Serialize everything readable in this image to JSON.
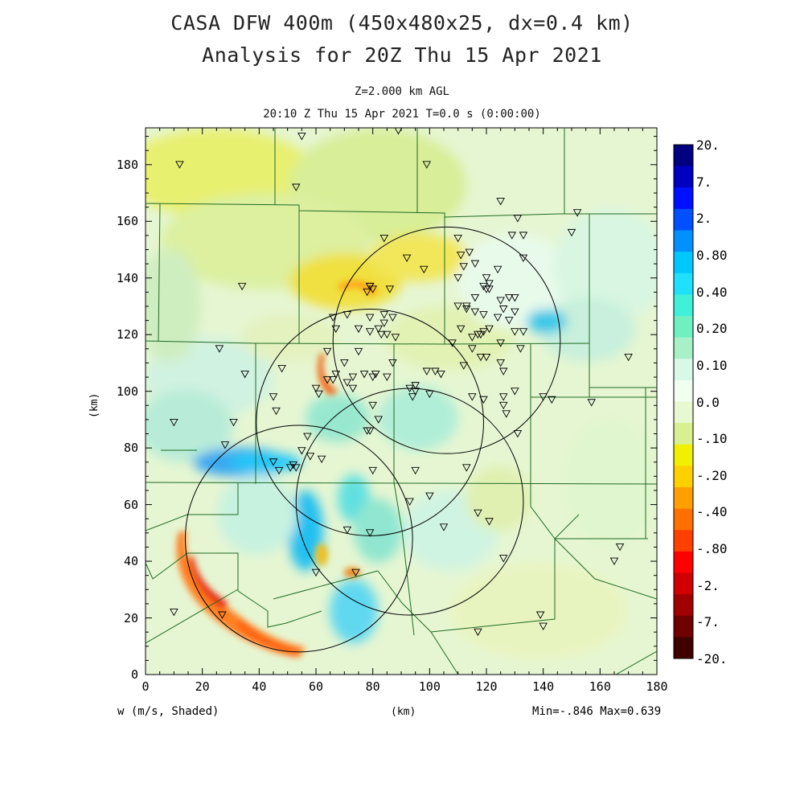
{
  "title": {
    "line1": "CASA DFW 400m (450x480x25, dx=0.4 km)",
    "line2": "Analysis for 20Z Thu 15 Apr 2021"
  },
  "subtitle": {
    "level": "Z=2.000 km AGL",
    "time": "20:10 Z Thu 15 Apr 2021    T=0.0 s (0:00:00)"
  },
  "axes": {
    "x_ticks": [
      "0",
      "20",
      "40",
      "60",
      "80",
      "100",
      "120",
      "140",
      "160",
      "180"
    ],
    "y_ticks": [
      "0",
      "20",
      "40",
      "60",
      "80",
      "100",
      "120",
      "140",
      "160",
      "180"
    ],
    "x_label": "(km)",
    "y_label": "(km)",
    "xlim": [
      0,
      180
    ],
    "ylim": [
      0,
      193
    ]
  },
  "footer": {
    "field": "w (m/s, Shaded)",
    "unit": "(km)",
    "minmax": "Min=-.846 Max=0.639"
  },
  "colorbar": {
    "colors": [
      "#000080",
      "#0000c0",
      "#0010ff",
      "#0050ff",
      "#0090ff",
      "#00c8ff",
      "#20e0ff",
      "#40f0d8",
      "#70f0c0",
      "#a8f0c8",
      "#d8f8e8",
      "#f0fff0",
      "#e8f8d0",
      "#d8f090",
      "#f0f000",
      "#ffd000",
      "#ffa000",
      "#ff7000",
      "#ff4000",
      "#ff0000",
      "#d00000",
      "#a00000",
      "#700000",
      "#400000"
    ],
    "labels": [
      "20.",
      "7.",
      "2.",
      "0.80",
      "0.40",
      "0.20",
      "0.10",
      "0.0",
      "-.10",
      "-.20",
      "-.40",
      "-.80",
      "-2.",
      "-7.",
      "-20."
    ]
  },
  "map": {
    "radars": [
      {
        "x": 106,
        "y": 118,
        "r": 40
      },
      {
        "x": 79,
        "y": 89,
        "r": 40
      },
      {
        "x": 93,
        "y": 61,
        "r": 40
      },
      {
        "x": 54,
        "y": 48,
        "r": 40
      }
    ],
    "stations": [
      [
        12,
        180
      ],
      [
        53,
        172
      ],
      [
        55,
        190
      ],
      [
        89,
        192
      ],
      [
        99,
        180
      ],
      [
        125,
        167
      ],
      [
        152,
        163
      ],
      [
        131,
        161
      ],
      [
        150,
        156
      ],
      [
        84,
        154
      ],
      [
        110,
        154
      ],
      [
        129,
        155
      ],
      [
        133,
        155
      ],
      [
        114,
        149
      ],
      [
        111,
        148
      ],
      [
        116,
        145
      ],
      [
        133,
        147
      ],
      [
        92,
        147
      ],
      [
        98,
        143
      ],
      [
        112,
        144
      ],
      [
        124,
        143
      ],
      [
        110,
        140
      ],
      [
        120,
        140
      ],
      [
        121,
        138
      ],
      [
        130,
        133
      ],
      [
        34,
        137
      ],
      [
        79,
        137
      ],
      [
        86,
        136
      ],
      [
        78,
        135
      ],
      [
        80,
        136
      ],
      [
        79,
        137
      ],
      [
        119,
        137
      ],
      [
        121,
        136
      ],
      [
        116,
        133
      ],
      [
        120,
        136
      ],
      [
        128,
        133
      ],
      [
        125,
        132
      ],
      [
        110,
        130
      ],
      [
        113,
        130
      ],
      [
        116,
        128
      ],
      [
        119,
        127
      ],
      [
        126,
        129
      ],
      [
        124,
        126
      ],
      [
        130,
        128
      ],
      [
        128,
        125
      ],
      [
        79,
        126
      ],
      [
        71,
        127
      ],
      [
        66,
        126
      ],
      [
        84,
        127
      ],
      [
        87,
        126
      ],
      [
        111,
        122
      ],
      [
        113,
        129
      ],
      [
        119,
        121
      ],
      [
        121,
        122
      ],
      [
        118,
        120
      ],
      [
        75,
        122
      ],
      [
        82,
        122
      ],
      [
        84,
        124
      ],
      [
        79,
        121
      ],
      [
        85,
        120
      ],
      [
        88,
        119
      ],
      [
        83,
        120
      ],
      [
        67,
        122
      ],
      [
        64,
        114
      ],
      [
        108,
        117
      ],
      [
        115,
        115
      ],
      [
        130,
        121
      ],
      [
        133,
        121
      ],
      [
        115,
        119
      ],
      [
        117,
        120
      ],
      [
        125,
        117
      ],
      [
        132,
        115
      ],
      [
        26,
        115
      ],
      [
        75,
        114
      ],
      [
        120,
        112
      ],
      [
        118,
        112
      ],
      [
        170,
        112
      ],
      [
        48,
        108
      ],
      [
        70,
        110
      ],
      [
        87,
        110
      ],
      [
        102,
        107
      ],
      [
        104,
        106
      ],
      [
        112,
        109
      ],
      [
        125,
        110
      ],
      [
        35,
        106
      ],
      [
        126,
        107
      ],
      [
        77,
        106
      ],
      [
        80,
        105
      ],
      [
        81,
        106
      ],
      [
        67,
        106
      ],
      [
        66,
        104
      ],
      [
        73,
        105
      ],
      [
        93,
        101
      ],
      [
        95,
        102
      ],
      [
        99,
        107
      ],
      [
        85,
        105
      ],
      [
        45,
        98
      ],
      [
        64,
        104
      ],
      [
        60,
        101
      ],
      [
        73,
        101
      ],
      [
        61,
        99
      ],
      [
        95,
        100
      ],
      [
        100,
        99
      ],
      [
        94,
        98
      ],
      [
        71,
        103
      ],
      [
        10,
        89
      ],
      [
        31,
        89
      ],
      [
        46,
        93
      ],
      [
        80,
        95
      ],
      [
        115,
        98
      ],
      [
        119,
        97
      ],
      [
        126,
        98
      ],
      [
        126,
        95
      ],
      [
        127,
        92
      ],
      [
        140,
        98
      ],
      [
        130,
        100
      ],
      [
        143,
        97
      ],
      [
        157,
        96
      ],
      [
        82,
        90
      ],
      [
        79,
        86
      ],
      [
        78,
        86
      ],
      [
        28,
        81
      ],
      [
        57,
        84
      ],
      [
        45,
        75
      ],
      [
        51,
        73
      ],
      [
        52,
        74
      ],
      [
        53,
        73
      ],
      [
        47,
        72
      ],
      [
        80,
        72
      ],
      [
        95,
        72
      ],
      [
        100,
        63
      ],
      [
        93,
        61
      ],
      [
        55,
        79
      ],
      [
        58,
        77
      ],
      [
        62,
        76
      ],
      [
        113,
        73
      ],
      [
        71,
        51
      ],
      [
        79,
        50
      ],
      [
        117,
        57
      ],
      [
        131,
        85
      ],
      [
        121,
        54
      ],
      [
        105,
        52
      ],
      [
        126,
        41
      ],
      [
        167,
        45
      ],
      [
        165,
        40
      ],
      [
        74,
        36
      ],
      [
        10,
        22
      ],
      [
        27,
        21
      ],
      [
        139,
        21
      ],
      [
        140,
        17
      ],
      [
        117,
        15
      ],
      [
        60,
        36
      ]
    ]
  }
}
